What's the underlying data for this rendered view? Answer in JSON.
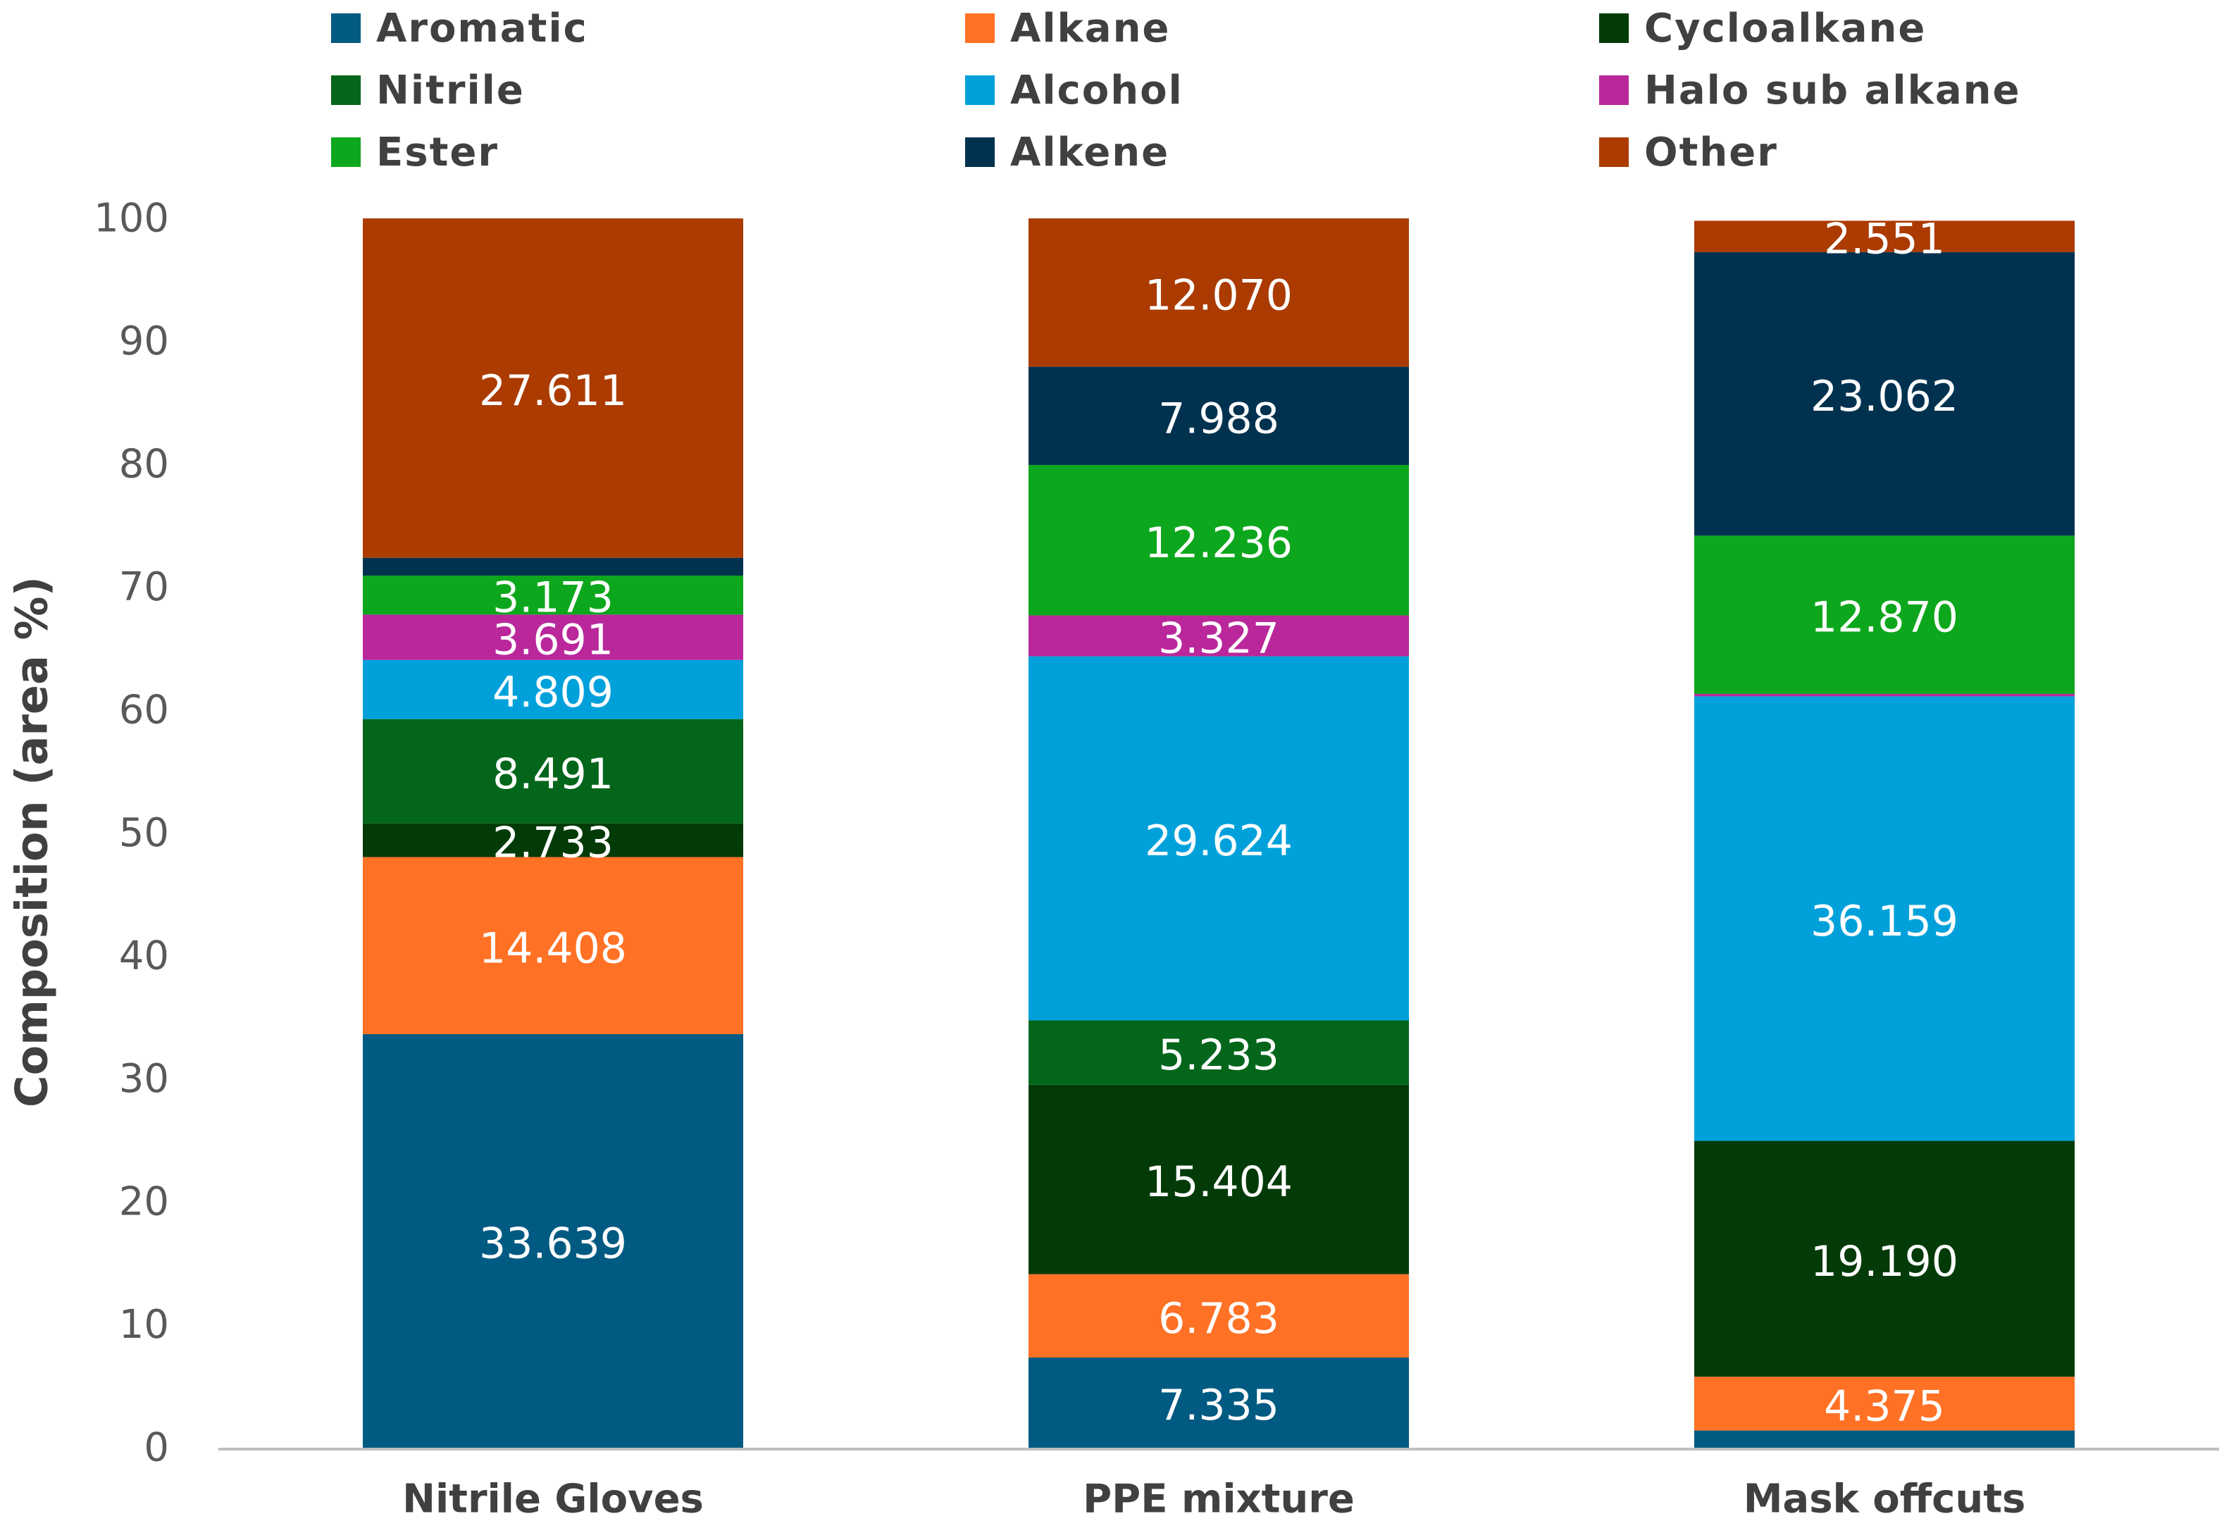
{
  "chart_data": {
    "type": "bar",
    "stacked": true,
    "title": "",
    "xlabel": "",
    "ylabel": "Composition (area %)",
    "ylim": [
      0,
      100
    ],
    "yticks": [
      0,
      10,
      20,
      30,
      40,
      50,
      60,
      70,
      80,
      90,
      100
    ],
    "grid": false,
    "legend_position": "top",
    "categories": [
      "Nitrile Gloves",
      "PPE mixture",
      "Mask offcuts"
    ],
    "series": [
      {
        "name": "Aromatic",
        "color": "#005A82",
        "values": [
          33.639,
          7.335,
          1.4
        ],
        "labels": [
          "33.639",
          "7.335",
          ""
        ]
      },
      {
        "name": "Alkane",
        "color": "#FF7125",
        "values": [
          14.408,
          6.783,
          4.375
        ],
        "labels": [
          "14.408",
          "6.783",
          "4.375"
        ]
      },
      {
        "name": "Cycloalkane",
        "color": "#023B08",
        "values": [
          2.733,
          15.404,
          19.19
        ],
        "labels": [
          "2.733",
          "15.404",
          "19.190"
        ]
      },
      {
        "name": "Nitrile",
        "color": "#03661A",
        "values": [
          8.491,
          5.233,
          0
        ],
        "labels": [
          "8.491",
          "5.233",
          ""
        ]
      },
      {
        "name": "Alcohol",
        "color": "#00A1DB",
        "values": [
          4.809,
          29.624,
          36.159
        ],
        "labels": [
          "4.809",
          "29.624",
          "36.159"
        ]
      },
      {
        "name": "Halo sub alkane",
        "color": "#B9279B",
        "values": [
          3.691,
          3.327,
          0.2
        ],
        "labels": [
          "3.691",
          "3.327",
          ""
        ]
      },
      {
        "name": "Ester",
        "color": "#0DA71D",
        "values": [
          3.173,
          12.236,
          12.87
        ],
        "labels": [
          "3.173",
          "12.236",
          "12.870"
        ]
      },
      {
        "name": "Alkene",
        "color": "#003250",
        "values": [
          1.445,
          7.988,
          23.062
        ],
        "labels": [
          "",
          "7.988",
          "23.062"
        ]
      },
      {
        "name": "Other",
        "color": "#AB3B00",
        "values": [
          27.611,
          12.07,
          2.551
        ],
        "labels": [
          "27.611",
          "12.070",
          "2.551"
        ]
      }
    ]
  }
}
